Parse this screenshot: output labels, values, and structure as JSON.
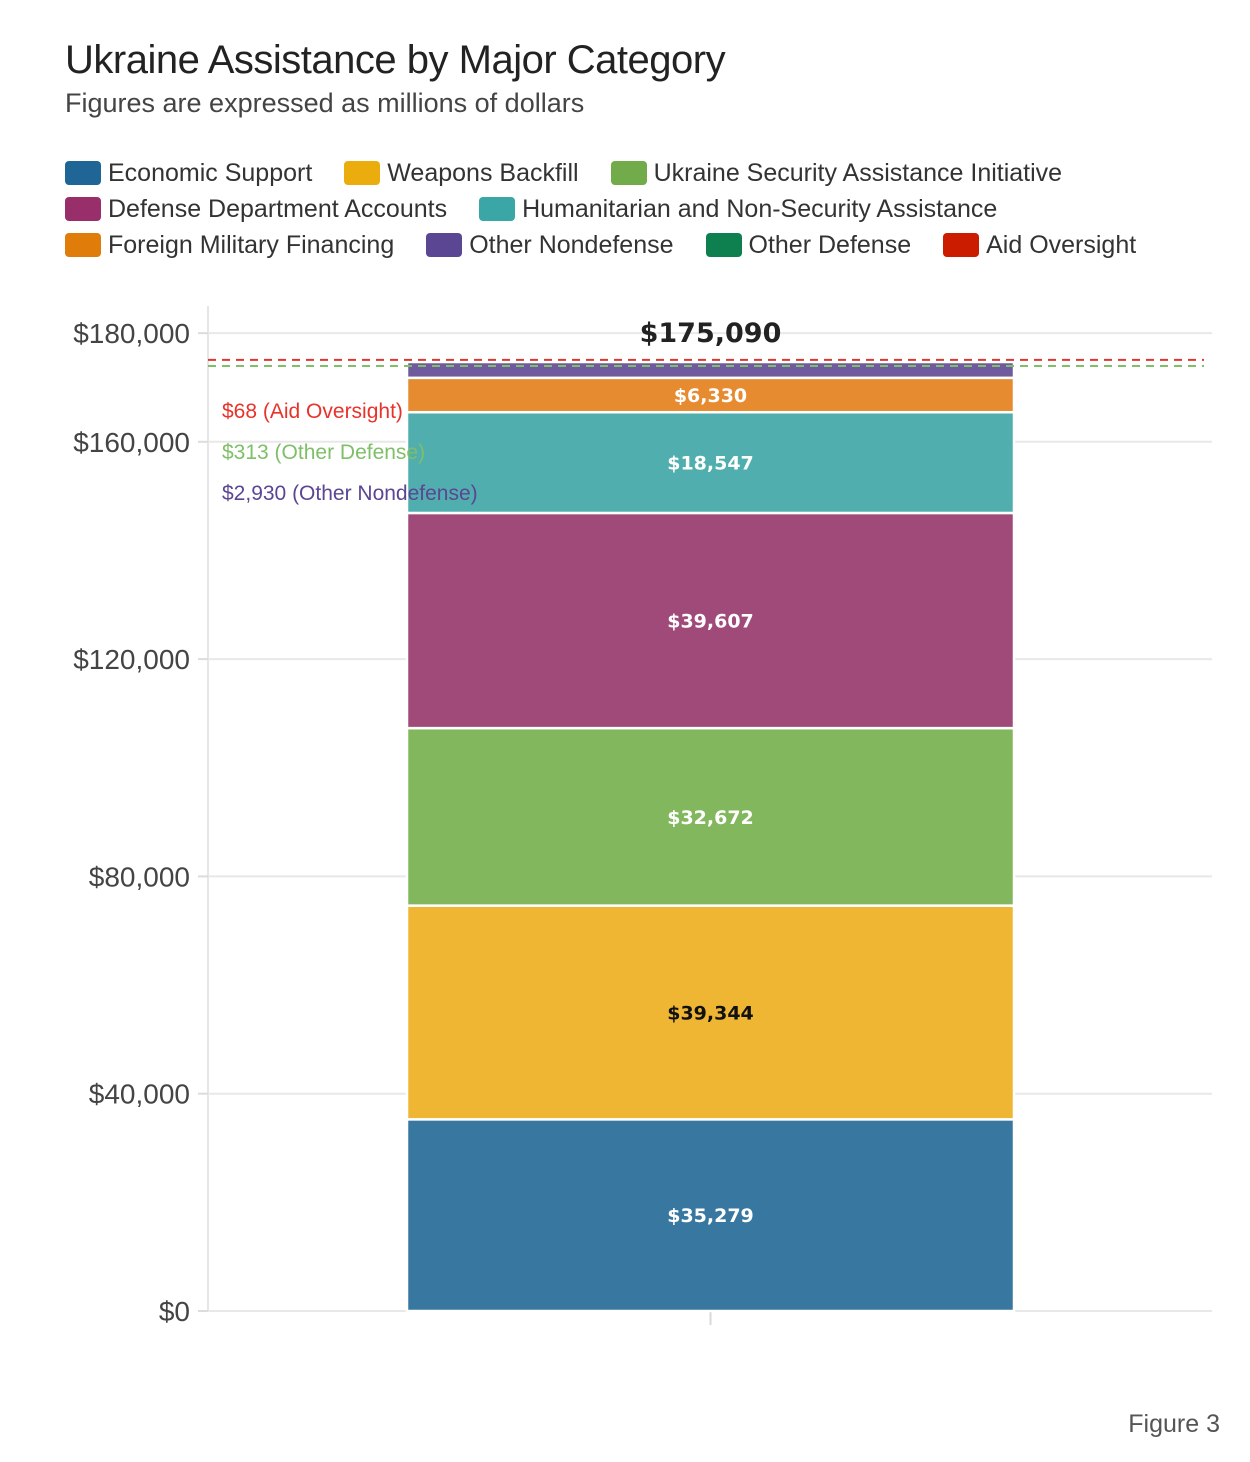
{
  "title": "Ukraine Assistance by Major Category",
  "subtitle": "Figures are expressed as millions of dollars",
  "figure_label": "Figure 3",
  "legend": {
    "rows": [
      [
        {
          "label": "Economic Support",
          "color": "#1f6696"
        },
        {
          "label": "Weapons Backfill",
          "color": "#ebad0e"
        },
        {
          "label": "Ukraine Security Assistance Initiative",
          "color": "#72ac4a"
        }
      ],
      [
        {
          "label": "Defense Department Accounts",
          "color": "#982f6b"
        },
        {
          "label": "Humanitarian and Non-Security Assistance",
          "color": "#3aa6a6"
        }
      ],
      [
        {
          "label": "Foreign Military Financing",
          "color": "#e07d0a"
        },
        {
          "label": "Other Nondefense",
          "color": "#5b4693"
        },
        {
          "label": "Other Defense",
          "color": "#0e8050"
        },
        {
          "label": "Aid Oversight",
          "color": "#cc1c00"
        }
      ]
    ]
  },
  "chart_data": {
    "type": "bar",
    "stacked": true,
    "categories": [
      ""
    ],
    "total_label": "$175,090",
    "ylim": [
      0,
      185000
    ],
    "yticks": [
      0,
      40000,
      80000,
      120000,
      160000,
      180000
    ],
    "ytick_labels": [
      "$0",
      "$40,000",
      "$80,000",
      "$120,000",
      "$160,000",
      "$180,000"
    ],
    "series": [
      {
        "name": "Economic Support",
        "value": 35279,
        "label": "$35,279",
        "color": "#38779f",
        "label_color": "#ffffff"
      },
      {
        "name": "Weapons Backfill",
        "value": 39344,
        "label": "$39,344",
        "color": "#efb634",
        "label_color": "#111111"
      },
      {
        "name": "Ukraine Security Assistance Initiative",
        "value": 32672,
        "label": "$32,672",
        "color": "#83b75d",
        "label_color": "#ffffff"
      },
      {
        "name": "Defense Department Accounts",
        "value": 39607,
        "label": "$39,607",
        "color": "#a04a7a",
        "label_color": "#ffffff"
      },
      {
        "name": "Humanitarian and Non-Security Assistance",
        "value": 18547,
        "label": "$18,547",
        "color": "#51aeae",
        "label_color": "#ffffff"
      },
      {
        "name": "Foreign Military Financing",
        "value": 6330,
        "label": "$6,330",
        "color": "#e68b30",
        "label_color": "#ffffff"
      },
      {
        "name": "Other Nondefense",
        "value": 2930,
        "label": "",
        "color": "#6e5a9c",
        "label_color": "#ffffff"
      },
      {
        "name": "Other Defense",
        "value": 313,
        "label": "",
        "color": "#0e8050",
        "label_color": "#ffffff"
      },
      {
        "name": "Aid Oversight",
        "value": 68,
        "label": "",
        "color": "#cc1c00",
        "label_color": "#ffffff"
      }
    ],
    "annotations": [
      {
        "text": "$68 (Aid Oversight)",
        "color": "#e8332a"
      },
      {
        "text": "$313 (Other Defense)",
        "color": "#7fbf68"
      },
      {
        "text": "$2,930 (Other Nondefense)",
        "color": "#5b4693"
      }
    ],
    "reference_lines": [
      {
        "value": 175090,
        "color": "#d9382e",
        "style": "dashed"
      },
      {
        "value": 174700,
        "color": "#7fbf68",
        "style": "dashed"
      }
    ]
  }
}
